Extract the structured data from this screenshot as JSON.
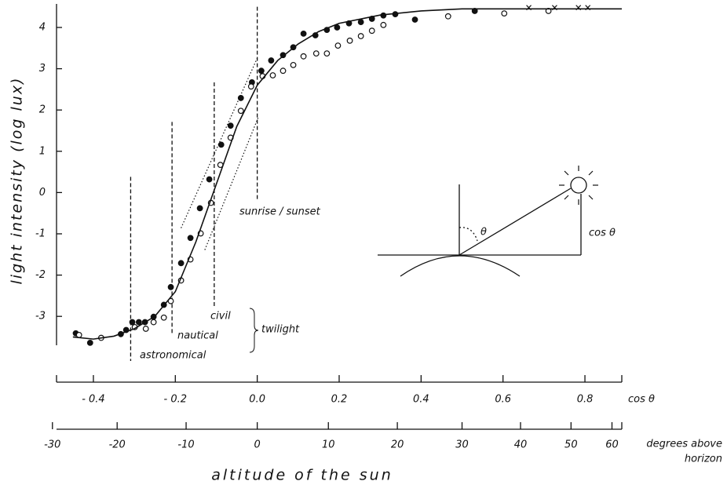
{
  "chart_data": {
    "type": "scatter",
    "ylabel": "light intensity  (log lux)",
    "xlabel": "altitude of the sun",
    "x_axis_name": "cos θ",
    "x2_axis_name": [
      "degrees above",
      "horizon"
    ],
    "xlim": [
      -0.49,
      0.89
    ],
    "ylim": [
      -3.7,
      4.57
    ],
    "xticks": [
      {
        "value": -0.4,
        "label": "- 0.4"
      },
      {
        "value": -0.2,
        "label": "- 0.2"
      },
      {
        "value": 0,
        "label": "0.0"
      },
      0.2,
      0.4,
      0.6,
      0.8
    ],
    "yticks": [
      {
        "value": -3,
        "label": "-3"
      },
      -2,
      -1,
      0,
      1,
      2,
      3,
      4
    ],
    "x2scale": "sine",
    "x2ticks": [
      -30,
      -20,
      -10,
      0,
      10,
      20,
      30,
      40,
      50,
      60
    ],
    "series": [
      {
        "marker": "filled",
        "color": "#111",
        "x": [
          -0.443,
          -0.408,
          -0.333,
          -0.32,
          -0.305,
          -0.289,
          -0.274,
          -0.253,
          -0.228,
          -0.211,
          -0.186,
          -0.163,
          -0.14,
          -0.117,
          -0.088,
          -0.065,
          -0.04,
          -0.013,
          0.01,
          0.034,
          0.063,
          0.088,
          0.113,
          0.142,
          0.17,
          0.195,
          0.224,
          0.253,
          0.28,
          0.308,
          0.337,
          0.385,
          0.531
        ],
        "values": [
          -3.41,
          -3.64,
          -3.43,
          -3.33,
          -3.14,
          -3.14,
          -3.14,
          -3.01,
          -2.72,
          -2.29,
          -1.71,
          -1.1,
          -0.38,
          0.32,
          1.16,
          1.62,
          2.29,
          2.67,
          2.95,
          3.2,
          3.33,
          3.52,
          3.85,
          3.81,
          3.94,
          4.0,
          4.1,
          4.13,
          4.21,
          4.29,
          4.32,
          4.19,
          4.4
        ]
      },
      {
        "marker": "open",
        "color": "#111",
        "x": [
          -0.435,
          -0.381,
          -0.299,
          -0.272,
          -0.253,
          -0.228,
          -0.211,
          -0.186,
          -0.163,
          -0.138,
          -0.113,
          -0.09,
          -0.065,
          -0.04,
          -0.015,
          0.013,
          0.038,
          0.063,
          0.088,
          0.113,
          0.144,
          0.17,
          0.197,
          0.226,
          0.253,
          0.28,
          0.308,
          0.466,
          0.603,
          0.711
        ],
        "values": [
          -3.45,
          -3.52,
          -3.26,
          -3.3,
          -3.14,
          -3.03,
          -2.63,
          -2.13,
          -1.62,
          -0.99,
          -0.25,
          0.67,
          1.33,
          1.98,
          2.57,
          2.82,
          2.84,
          2.95,
          3.09,
          3.3,
          3.37,
          3.37,
          3.56,
          3.68,
          3.79,
          3.92,
          4.06,
          4.27,
          4.34,
          4.4
        ]
      },
      {
        "marker": "cross",
        "color": "#111",
        "x": [
          0.663,
          0.726,
          0.784,
          0.807
        ],
        "values": [
          4.48,
          4.48,
          4.48,
          4.48
        ]
      },
      {
        "marker": "line",
        "color": "#111",
        "x": [
          -0.45,
          -0.4,
          -0.35,
          -0.3,
          -0.25,
          -0.2,
          -0.15,
          -0.1,
          -0.05,
          0,
          0.05,
          0.1,
          0.15,
          0.2,
          0.3,
          0.4,
          0.5,
          0.6,
          0.7,
          0.8,
          0.89
        ],
        "values": [
          -3.5,
          -3.55,
          -3.48,
          -3.3,
          -3.0,
          -2.4,
          -1.2,
          0.2,
          1.6,
          2.6,
          3.2,
          3.6,
          3.9,
          4.1,
          4.3,
          4.4,
          4.45,
          4.45,
          4.45,
          4.45,
          4.45
        ]
      },
      {
        "marker": "dotted",
        "color": "#111",
        "x": [
          -0.186,
          0.002
        ],
        "values": [
          -0.86,
          3.3
        ]
      },
      {
        "marker": "dotted",
        "color": "#111",
        "x": [
          -0.128,
          0.002
        ],
        "values": [
          -1.39,
          1.81
        ]
      }
    ],
    "vlines": [
      {
        "x": -0.309,
        "top": 0.38,
        "label": "astronomical"
      },
      {
        "x": -0.208,
        "top": 1.71,
        "label": "nautical"
      },
      {
        "x": -0.105,
        "top": 2.67,
        "label": "civil"
      },
      {
        "x": 0,
        "top": 4.5,
        "label": "sunrise / sunset"
      }
    ],
    "twilight_label": "twilight",
    "inset": {
      "angle_label": "θ",
      "height_label": "cos θ"
    }
  }
}
